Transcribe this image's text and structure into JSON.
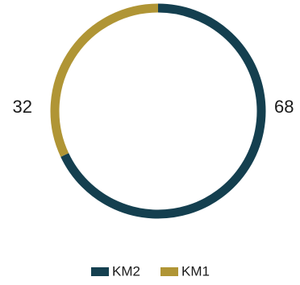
{
  "chart_data": {
    "type": "pie",
    "variant": "donut",
    "series": [
      {
        "name": "KM2",
        "value": 68,
        "color": "#143f4f"
      },
      {
        "name": "KM1",
        "value": 32,
        "color": "#b09535"
      }
    ],
    "data_labels": [
      "68",
      "32"
    ],
    "legend_position": "bottom",
    "start": "top",
    "direction": "clockwise"
  }
}
